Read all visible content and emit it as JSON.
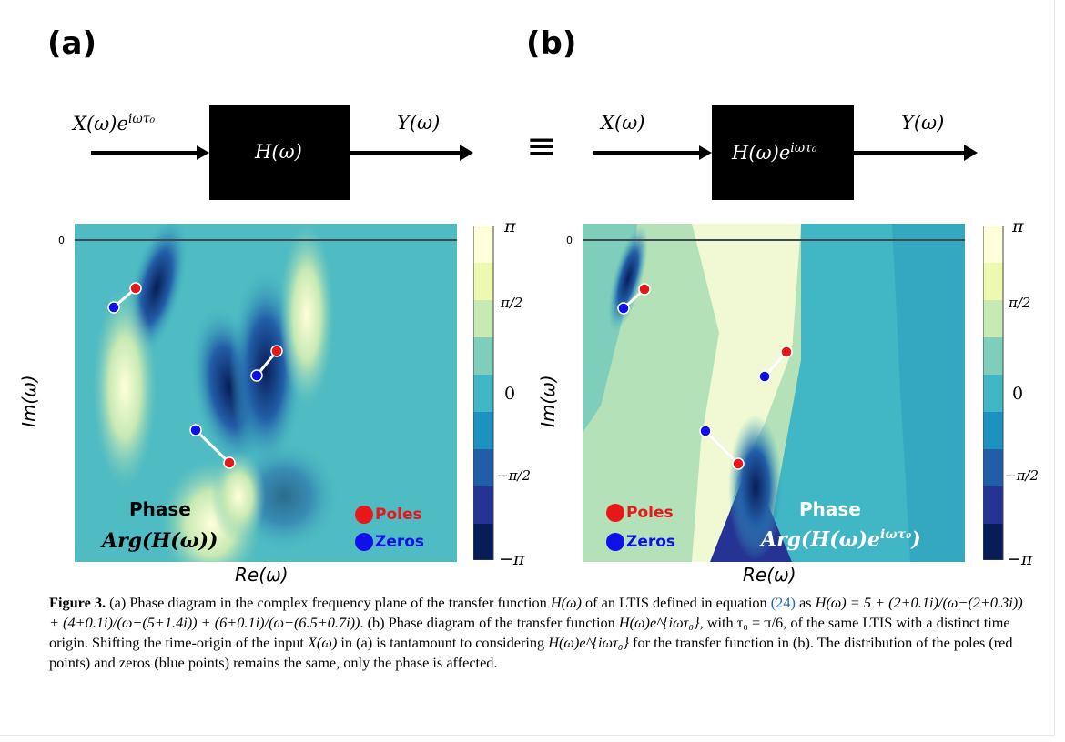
{
  "panels": {
    "a": {
      "label": "(a)",
      "input_label": "X(ω)e",
      "input_sup": "iωτ₀",
      "box_label": "H(ω)",
      "output_label": "Y(ω)",
      "ylabel": "Im(ω)",
      "xlabel": "Re(ω)",
      "y_tick": "0",
      "phase_title": "Phase",
      "phase_formula": "Arg(H(ω))",
      "legend": {
        "poles": "Poles",
        "zeros": "Zeros"
      }
    },
    "b": {
      "label": "(b)",
      "input_label": "X(ω)",
      "box_label": "H(ω)e",
      "box_sup": "iωτ₀",
      "output_label": "Y(ω)",
      "ylabel": "Im(ω)",
      "xlabel": "Re(ω)",
      "y_tick": "0",
      "phase_title": "Phase",
      "phase_formula": "Arg(H(ω)e",
      "phase_formula_sup": "iωτ₀",
      "phase_formula_end": ")",
      "legend": {
        "poles": "Poles",
        "zeros": "Zeros"
      }
    },
    "equiv_symbol": "≡"
  },
  "colorbar": {
    "ticks": [
      "π",
      "π/2",
      "0",
      "−π/2",
      "−π"
    ],
    "colors": [
      "#ffffd9",
      "#edf8b1",
      "#c7e9b4",
      "#7fcdbb",
      "#41b6c4",
      "#1d91c0",
      "#225ea8",
      "#253494",
      "#081d58"
    ]
  },
  "colors": {
    "pole": "#e8181a",
    "zero": "#1010e8",
    "legend_poles": "#e8181a",
    "legend_zeros": "#1010e8"
  },
  "caption": {
    "fig": "Figure 3.",
    "text1": " (a) Phase diagram in the complex frequency plane of the transfer function ",
    "hw": "H(ω)",
    "text2": " of an LTIS defined in equation ",
    "eq_ref": "(24)",
    "text3": " as ",
    "formula": "H(ω) = 5 + (2+0.1i)/(ω−(2+0.3i)) + (4+0.1i)/(ω−(5+1.4i)) + (6+0.1i)/(ω−(6.5+0.7i))",
    "text4": ". (b) Phase diagram of the transfer function ",
    "hw2": "H(ω)e^{iωτ₀}",
    "text5": ", with τ₀ = π/6, of the same LTIS with a distinct time origin. Shifting the time-origin of the input ",
    "xw": "X(ω)",
    "text6": " in (a) is tantamount to considering ",
    "hw3": "H(ω)e^{iωτ₀}",
    "text7": " for the transfer function in (b). The distribution of the poles (red points) and zeros (blue points) remains the same, only the phase is affected."
  }
}
